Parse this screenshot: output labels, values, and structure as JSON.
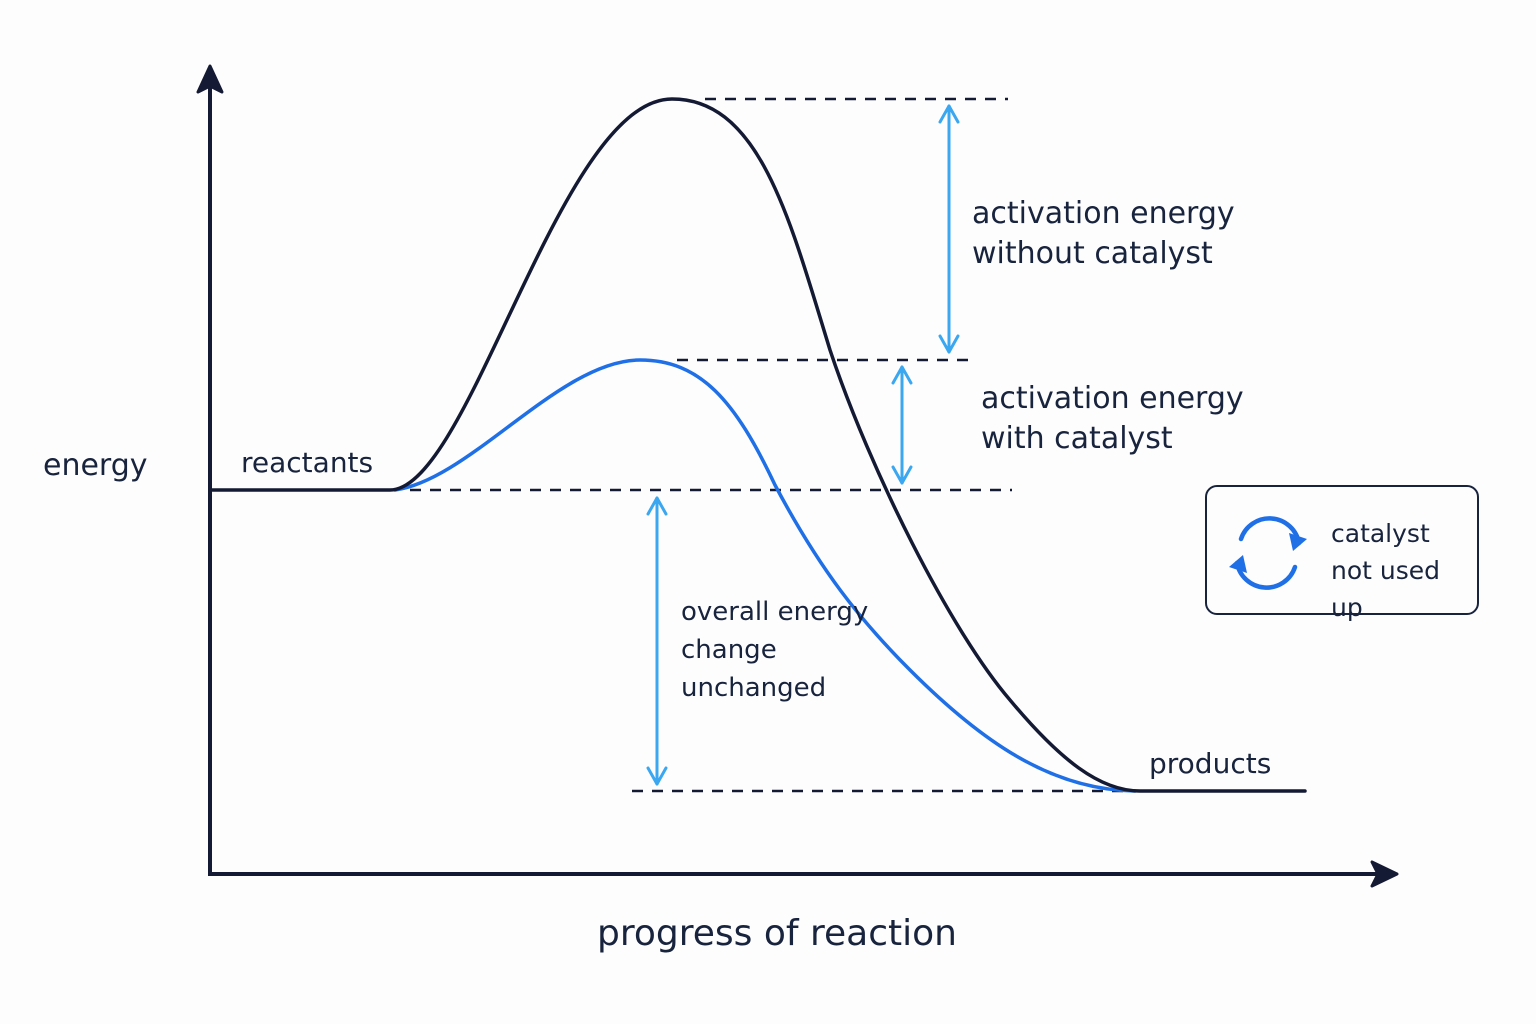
{
  "axes": {
    "y_label": "energy",
    "x_label": "progress of reaction"
  },
  "labels": {
    "reactants": "reactants",
    "products": "products",
    "ea_without": [
      "activation energy",
      "without catalyst"
    ],
    "ea_with": [
      "activation energy",
      "with catalyst"
    ],
    "overall": [
      "overall energy",
      "change",
      "unchanged"
    ]
  },
  "legend": {
    "line1": "catalyst",
    "line2": "not used up",
    "icon": "cycle-arrows-icon"
  },
  "colors": {
    "uncatalysed_curve": "#141a33",
    "catalysed_curve": "#1f6fe6",
    "arrow": "#3aa7f0",
    "axis": "#141a33",
    "text": "#18233d"
  }
}
